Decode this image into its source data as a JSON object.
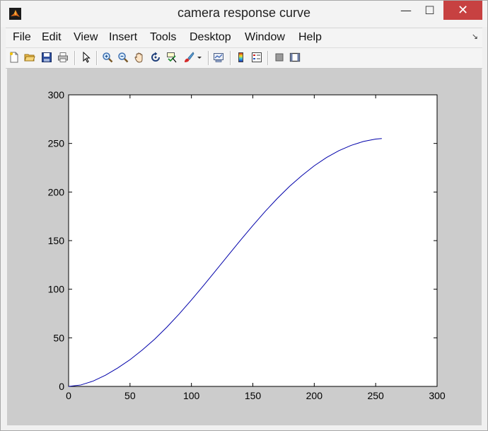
{
  "window": {
    "title": "camera response curve",
    "minimize_label": "—",
    "maximize_label": "☐",
    "close_label": "✕"
  },
  "menubar": {
    "items": [
      "File",
      "Edit",
      "View",
      "Insert",
      "Tools",
      "Desktop",
      "Window",
      "Help"
    ],
    "pin_label": "↘"
  },
  "toolbar": {
    "icons": [
      "new-figure-icon",
      "open-file-icon",
      "save-figure-icon",
      "print-figure-icon",
      "edit-plot-arrow-icon",
      "zoom-in-icon",
      "zoom-out-icon",
      "pan-hand-icon",
      "rotate-3d-icon",
      "data-cursor-icon",
      "brush-icon",
      "brush-dropdown-icon",
      "link-plot-icon",
      "insert-colorbar-icon",
      "insert-legend-icon",
      "hide-plot-tools-icon",
      "show-plot-tools-icon"
    ]
  },
  "chart_data": {
    "type": "line",
    "title": "",
    "xlabel": "",
    "ylabel": "",
    "xlim": [
      0,
      300
    ],
    "ylim": [
      0,
      300
    ],
    "xticks": [
      0,
      50,
      100,
      150,
      200,
      250,
      300
    ],
    "yticks": [
      0,
      50,
      100,
      150,
      200,
      250,
      300
    ],
    "grid": false,
    "series": [
      {
        "color": "#0000aa",
        "x": [
          0,
          10,
          20,
          30,
          40,
          50,
          60,
          70,
          80,
          90,
          100,
          110,
          120,
          130,
          140,
          150,
          160,
          170,
          180,
          190,
          200,
          210,
          220,
          230,
          240,
          250,
          255
        ],
        "y": [
          0,
          1.5,
          5.5,
          11.5,
          19,
          27.5,
          37.5,
          48.5,
          61,
          74.5,
          89,
          104,
          119.5,
          135,
          150.5,
          165.5,
          180,
          193.5,
          206,
          217,
          227,
          235.5,
          242.5,
          248,
          252,
          254.5,
          255
        ]
      }
    ]
  }
}
